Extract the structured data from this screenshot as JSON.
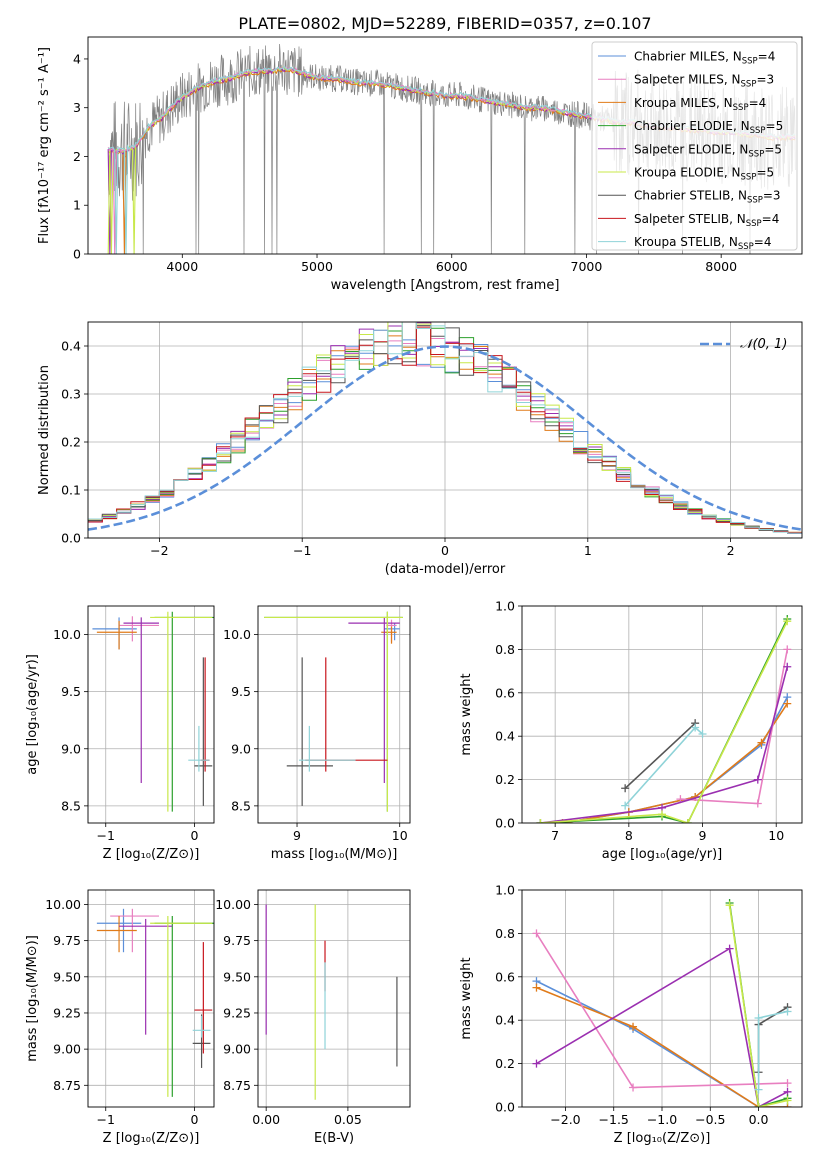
{
  "figure_title": "PLATE=0802, MJD=52289, FIBERID=0357, z=0.107",
  "colors": {
    "Chabrier MILES": "#5b8fd9",
    "Salpeter MILES": "#e87fc0",
    "Kroupa MILES": "#e07b1a",
    "Chabrier ELODIE": "#2ca02c",
    "Salpeter ELODIE": "#9a2fb0",
    "Kroupa ELODIE": "#c8e84a",
    "Chabrier STELIB": "#555555",
    "Salpeter STELIB": "#c8161d",
    "Kroupa STELIB": "#8fd3d8",
    "gauss": "#5b8fd9",
    "spectrum_data": "#808080"
  },
  "chart_data": [
    {
      "id": "spectrum",
      "type": "line",
      "title": "PLATE=0802, MJD=52289, FIBERID=0357, z=0.107",
      "xlabel": "wavelength [Angstrom, rest frame]",
      "ylabel": "Flux [fλ10⁻¹⁷ erg cm⁻² s⁻¹ A⁻¹]",
      "xlim": [
        3300,
        8600
      ],
      "ylim": [
        0,
        4.45
      ],
      "xticks": [
        4000,
        5000,
        6000,
        7000,
        8000
      ],
      "yticks": [
        0,
        1,
        2,
        3,
        4
      ],
      "legend_position": "upper right",
      "legend": [
        {
          "name": "Chabrier MILES, N",
          "sub": "SSP",
          "tail": "=4",
          "color": "Chabrier MILES"
        },
        {
          "name": "Salpeter MILES, N",
          "sub": "SSP",
          "tail": "=3",
          "color": "Salpeter MILES"
        },
        {
          "name": "Kroupa MILES, N",
          "sub": "SSP",
          "tail": "=4",
          "color": "Kroupa MILES"
        },
        {
          "name": "Chabrier ELODIE, N",
          "sub": "SSP",
          "tail": "=5",
          "color": "Chabrier ELODIE"
        },
        {
          "name": "Salpeter ELODIE, N",
          "sub": "SSP",
          "tail": "=5",
          "color": "Salpeter ELODIE"
        },
        {
          "name": "Kroupa ELODIE, N",
          "sub": "SSP",
          "tail": "=5",
          "color": "Kroupa ELODIE"
        },
        {
          "name": "Chabrier STELIB, N",
          "sub": "SSP",
          "tail": "=3",
          "color": "Chabrier STELIB"
        },
        {
          "name": "Salpeter STELIB, N",
          "sub": "SSP",
          "tail": "=4",
          "color": "Salpeter STELIB"
        },
        {
          "name": "Kroupa STELIB, N",
          "sub": "SSP",
          "tail": "=4",
          "color": "Kroupa STELIB"
        }
      ],
      "continuum": {
        "x": [
          3450,
          3550,
          3650,
          3750,
          3850,
          3950,
          4050,
          4150,
          4250,
          4350,
          4450,
          4550,
          4650,
          4750,
          4850,
          4950,
          5050,
          5150,
          5250,
          5350,
          5450,
          5550,
          5650,
          5750,
          5850,
          5950,
          6050,
          6150,
          6250,
          6350,
          6450,
          6550,
          6650,
          6750,
          6850,
          6950,
          7050,
          7150,
          7250,
          7350,
          7450,
          7550,
          7650,
          7750,
          7850,
          7950,
          8050,
          8150,
          8250,
          8350,
          8450,
          8550
        ],
        "y": [
          2.15,
          2.1,
          2.2,
          2.6,
          2.8,
          3.1,
          3.3,
          3.45,
          3.55,
          3.6,
          3.7,
          3.75,
          3.75,
          3.8,
          3.75,
          3.65,
          3.6,
          3.6,
          3.55,
          3.5,
          3.5,
          3.45,
          3.4,
          3.35,
          3.3,
          3.25,
          3.25,
          3.2,
          3.15,
          3.1,
          3.05,
          3.0,
          3.0,
          2.95,
          2.9,
          2.85,
          2.8,
          2.75,
          2.7,
          2.7,
          2.65,
          2.6,
          2.6,
          2.55,
          2.55,
          2.5,
          2.5,
          2.45,
          2.45,
          2.4,
          2.4,
          2.4
        ]
      }
    },
    {
      "id": "residuals",
      "type": "bar",
      "xlabel": "(data-model)/error",
      "ylabel": "Normed distribution",
      "xlim": [
        -2.5,
        2.5
      ],
      "ylim": [
        0,
        0.45
      ],
      "xticks": [
        -2,
        -1,
        0,
        1,
        2
      ],
      "yticks": [
        0.0,
        0.1,
        0.2,
        0.3,
        0.4
      ],
      "grid": true,
      "legend": [
        {
          "name": "𝒩(0, 1)",
          "color": "gauss",
          "style": "dashed"
        }
      ],
      "legend_position": "upper right",
      "bin_width": 0.1,
      "gaussian": {
        "mean": 0,
        "sigma": 1
      }
    },
    {
      "id": "age_vs_Z",
      "type": "scatter",
      "xlabel": "Z [log₁₀(Z/Z⊙)]",
      "ylabel": "age  [log₁₀(age/yr)]",
      "xlim": [
        -1.2,
        0.22
      ],
      "ylim": [
        8.35,
        10.25
      ],
      "xticks": [
        -1,
        0
      ],
      "yticks": [
        8.5,
        9.0,
        9.5,
        10.0
      ],
      "grid": true,
      "errorbars": [
        {
          "model": "Chabrier MILES",
          "x": -0.85,
          "xerr": [
            0.3,
            0.2
          ],
          "y": 10.05,
          "yerr": [
            0.18,
            0.1
          ]
        },
        {
          "model": "Salpeter MILES",
          "x": -0.7,
          "xerr": [
            0.15,
            0.3
          ],
          "y": 10.08,
          "yerr": [
            0.14,
            0.08
          ]
        },
        {
          "model": "Kroupa MILES",
          "x": -0.85,
          "xerr": [
            0.25,
            0.2
          ],
          "y": 10.02,
          "yerr": [
            0.15,
            0.1
          ]
        },
        {
          "model": "Chabrier ELODIE",
          "x": -0.25,
          "xerr": [
            0.2,
            0.5
          ],
          "y": 10.15,
          "yerr": [
            1.7,
            0.05
          ]
        },
        {
          "model": "Salpeter ELODIE",
          "x": -0.6,
          "xerr": [
            0.2,
            0.2
          ],
          "y": 10.1,
          "yerr": [
            1.4,
            0.05
          ]
        },
        {
          "model": "Kroupa ELODIE",
          "x": -0.3,
          "xerr": [
            0.2,
            0.5
          ],
          "y": 10.15,
          "yerr": [
            1.7,
            0.05
          ]
        },
        {
          "model": "Chabrier STELIB",
          "x": 0.1,
          "xerr": [
            0.1,
            0.1
          ],
          "y": 8.85,
          "yerr": [
            0.35,
            0.95
          ]
        },
        {
          "model": "Salpeter STELIB",
          "x": 0.12,
          "xerr": [
            0.05,
            0.05
          ],
          "y": 8.9,
          "yerr": [
            0.1,
            0.9
          ]
        },
        {
          "model": "Kroupa STELIB",
          "x": 0.05,
          "xerr": [
            0.12,
            0.12
          ],
          "y": 8.9,
          "yerr": [
            0.1,
            0.3
          ]
        }
      ]
    },
    {
      "id": "age_vs_mass",
      "type": "scatter",
      "xlabel": "mass [log₁₀(M/M⊙)]",
      "ylabel": "",
      "xlim": [
        8.62,
        10.1
      ],
      "ylim": [
        8.35,
        10.25
      ],
      "xticks": [
        9,
        10
      ],
      "yticks": [
        8.5,
        9.0,
        9.5,
        10.0
      ],
      "grid": true,
      "errorbars": [
        {
          "model": "Chabrier MILES",
          "x": 9.95,
          "xerr": [
            0.1,
            0.05
          ],
          "y": 10.05,
          "yerr": [
            0.1,
            0.05
          ]
        },
        {
          "model": "Salpeter MILES",
          "x": 9.92,
          "xerr": [
            0.05,
            0.05
          ],
          "y": 10.08,
          "yerr": [
            0.15,
            0.05
          ]
        },
        {
          "model": "Kroupa MILES",
          "x": 9.92,
          "xerr": [
            0.1,
            0.05
          ],
          "y": 10.02,
          "yerr": [
            0.1,
            0.05
          ]
        },
        {
          "model": "Chabrier ELODIE",
          "x": 9.88,
          "xerr": [
            1.2,
            0.15
          ],
          "y": 10.15,
          "yerr": [
            1.7,
            0.05
          ]
        },
        {
          "model": "Salpeter ELODIE",
          "x": 9.85,
          "xerr": [
            0.35,
            0.15
          ],
          "y": 10.1,
          "yerr": [
            1.4,
            0.05
          ]
        },
        {
          "model": "Kroupa ELODIE",
          "x": 9.88,
          "xerr": [
            1.2,
            0.15
          ],
          "y": 10.15,
          "yerr": [
            1.7,
            0.05
          ]
        },
        {
          "model": "Chabrier STELIB",
          "x": 9.05,
          "xerr": [
            0.15,
            0.3
          ],
          "y": 8.85,
          "yerr": [
            0.35,
            0.95
          ]
        },
        {
          "model": "Salpeter STELIB",
          "x": 9.28,
          "xerr": [
            0.2,
            0.6
          ],
          "y": 8.9,
          "yerr": [
            0.1,
            0.9
          ]
        },
        {
          "model": "Kroupa STELIB",
          "x": 9.12,
          "xerr": [
            0.1,
            0.45
          ],
          "y": 8.9,
          "yerr": [
            0.1,
            0.3
          ]
        }
      ]
    },
    {
      "id": "weight_vs_age",
      "type": "line",
      "xlabel": "age  [log₁₀(age/yr)]",
      "ylabel": "mass weight",
      "xlim": [
        6.55,
        10.35
      ],
      "ylim": [
        0,
        1
      ],
      "xticks": [
        7,
        8,
        9,
        10
      ],
      "yticks": [
        0.0,
        0.2,
        0.4,
        0.6,
        0.8,
        1.0
      ],
      "grid": true,
      "series": [
        {
          "model": "Chabrier STELIB",
          "x": [
            7.95,
            8.9
          ],
          "y": [
            0.16,
            0.46
          ]
        },
        {
          "model": "Kroupa STELIB",
          "x": [
            7.95,
            8.9,
            9.0
          ],
          "y": [
            0.08,
            0.44,
            0.41
          ]
        },
        {
          "model": "Chabrier MILES",
          "x": [
            7.1,
            8.0,
            8.9,
            9.8,
            10.15
          ],
          "y": [
            0.0,
            0.05,
            0.12,
            0.36,
            0.58
          ]
        },
        {
          "model": "Kroupa MILES",
          "x": [
            7.1,
            8.0,
            8.9,
            9.8,
            10.15
          ],
          "y": [
            0.0,
            0.05,
            0.12,
            0.37,
            0.55
          ]
        },
        {
          "model": "Salpeter MILES",
          "x": [
            8.7,
            9.75,
            10.15
          ],
          "y": [
            0.11,
            0.09,
            0.8
          ]
        },
        {
          "model": "Salpeter ELODIE",
          "x": [
            6.8,
            8.45,
            9.75,
            10.15
          ],
          "y": [
            0.0,
            0.07,
            0.2,
            0.72
          ]
        },
        {
          "model": "Chabrier ELODIE",
          "x": [
            6.8,
            8.45,
            8.8,
            10.15
          ],
          "y": [
            0.0,
            0.03,
            0.0,
            0.94
          ]
        },
        {
          "model": "Kroupa ELODIE",
          "x": [
            6.8,
            8.45,
            8.8,
            10.15
          ],
          "y": [
            0.0,
            0.04,
            0.0,
            0.93
          ]
        }
      ]
    },
    {
      "id": "mass_vs_Z",
      "type": "scatter",
      "xlabel": "Z [log₁₀(Z/Z⊙)]",
      "ylabel": "mass [log₁₀(M/M⊙)]",
      "xlim": [
        -1.2,
        0.22
      ],
      "ylim": [
        8.6,
        10.1
      ],
      "xticks": [
        -1,
        0
      ],
      "yticks": [
        8.75,
        9.0,
        9.25,
        9.5,
        9.75,
        10.0
      ],
      "grid": true,
      "errorbars": [
        {
          "model": "Chabrier MILES",
          "x": -0.8,
          "xerr": [
            0.3,
            0.2
          ],
          "y": 9.87,
          "yerr": [
            0.2,
            0.1
          ]
        },
        {
          "model": "Salpeter MILES",
          "x": -0.7,
          "xerr": [
            0.25,
            0.3
          ],
          "y": 9.92,
          "yerr": [
            0.25,
            0.05
          ]
        },
        {
          "model": "Kroupa MILES",
          "x": -0.85,
          "xerr": [
            0.25,
            0.2
          ],
          "y": 9.82,
          "yerr": [
            0.15,
            0.1
          ]
        },
        {
          "model": "Chabrier ELODIE",
          "x": -0.25,
          "xerr": [
            0.2,
            0.5
          ],
          "y": 9.87,
          "yerr": [
            1.2,
            0.05
          ]
        },
        {
          "model": "Salpeter ELODIE",
          "x": -0.55,
          "xerr": [
            0.3,
            0.3
          ],
          "y": 9.85,
          "yerr": [
            0.75,
            0.05
          ]
        },
        {
          "model": "Kroupa ELODIE",
          "x": -0.3,
          "xerr": [
            0.2,
            0.5
          ],
          "y": 9.87,
          "yerr": [
            1.2,
            0.05
          ]
        },
        {
          "model": "Chabrier STELIB",
          "x": 0.08,
          "xerr": [
            0.1,
            0.1
          ],
          "y": 9.04,
          "yerr": [
            0.17,
            0.2
          ]
        },
        {
          "model": "Salpeter STELIB",
          "x": 0.1,
          "xerr": [
            0.1,
            0.1
          ],
          "y": 9.27,
          "yerr": [
            0.3,
            0.47
          ]
        },
        {
          "model": "Kroupa STELIB",
          "x": 0.08,
          "xerr": [
            0.1,
            0.1
          ],
          "y": 9.13,
          "yerr": [
            0.05,
            0.1
          ]
        }
      ]
    },
    {
      "id": "mass_vs_EBV",
      "type": "scatter",
      "xlabel": "E(B-V)",
      "ylabel": "",
      "xlim": [
        -0.005,
        0.088
      ],
      "ylim": [
        8.6,
        10.1
      ],
      "xticks": [
        0.0,
        0.05
      ],
      "yticks": [
        8.75,
        9.0,
        9.25,
        9.5,
        9.75,
        10.0
      ],
      "grid": true,
      "errorbars": [
        {
          "model": "Salpeter ELODIE",
          "x": 0.0,
          "xerr": [
            0,
            0
          ],
          "y": 9.6,
          "yerr": [
            0.5,
            0.4
          ]
        },
        {
          "model": "Kroupa ELODIE",
          "x": 0.03,
          "xerr": [
            0,
            0
          ],
          "y": 9.3,
          "yerr": [
            0.65,
            0.7
          ]
        },
        {
          "model": "Salpeter STELIB",
          "x": 0.036,
          "xerr": [
            0,
            0
          ],
          "y": 9.6,
          "yerr": [
            0.2,
            0.15
          ]
        },
        {
          "model": "Kroupa STELIB",
          "x": 0.036,
          "xerr": [
            0,
            0
          ],
          "y": 9.3,
          "yerr": [
            0.3,
            0.3
          ]
        },
        {
          "model": "Chabrier STELIB",
          "x": 0.08,
          "xerr": [
            0,
            0
          ],
          "y": 9.2,
          "yerr": [
            0.32,
            0.3
          ]
        }
      ]
    },
    {
      "id": "weight_vs_Z",
      "type": "line",
      "xlabel": "Z [log₁₀(Z/Z⊙)]",
      "ylabel": "mass weight",
      "xlim": [
        -2.45,
        0.45
      ],
      "ylim": [
        0,
        1
      ],
      "xticks": [
        -2.0,
        -1.5,
        -1.0,
        -0.5,
        0.0
      ],
      "yticks": [
        0.0,
        0.2,
        0.4,
        0.6,
        0.8,
        1.0
      ],
      "grid": true,
      "series": [
        {
          "model": "Chabrier MILES",
          "x": [
            -2.3,
            -1.3,
            0.0,
            0.3
          ],
          "y": [
            0.58,
            0.36,
            0.0,
            0.0
          ]
        },
        {
          "model": "Kroupa MILES",
          "x": [
            -2.3,
            -1.3,
            0.0,
            0.3
          ],
          "y": [
            0.55,
            0.37,
            0.0,
            0.0
          ]
        },
        {
          "model": "Salpeter MILES",
          "x": [
            -2.3,
            -1.3,
            0.3
          ],
          "y": [
            0.8,
            0.09,
            0.11
          ]
        },
        {
          "model": "Salpeter ELODIE",
          "x": [
            -2.3,
            -0.3,
            0.0,
            0.3
          ],
          "y": [
            0.2,
            0.73,
            0.0,
            0.07
          ]
        },
        {
          "model": "Chabrier ELODIE",
          "x": [
            -0.3,
            0.0,
            0.3
          ],
          "y": [
            0.94,
            0.0,
            0.04
          ]
        },
        {
          "model": "Kroupa ELODIE",
          "x": [
            -0.3,
            0.0,
            0.3
          ],
          "y": [
            0.93,
            0.0,
            0.03
          ]
        },
        {
          "model": "Chabrier STELIB",
          "x": [
            0.0,
            0.0,
            0.3
          ],
          "y": [
            0.16,
            0.38,
            0.46
          ]
        },
        {
          "model": "Kroupa STELIB",
          "x": [
            0.0,
            0.0,
            0.3
          ],
          "y": [
            0.08,
            0.41,
            0.44
          ]
        }
      ]
    }
  ]
}
